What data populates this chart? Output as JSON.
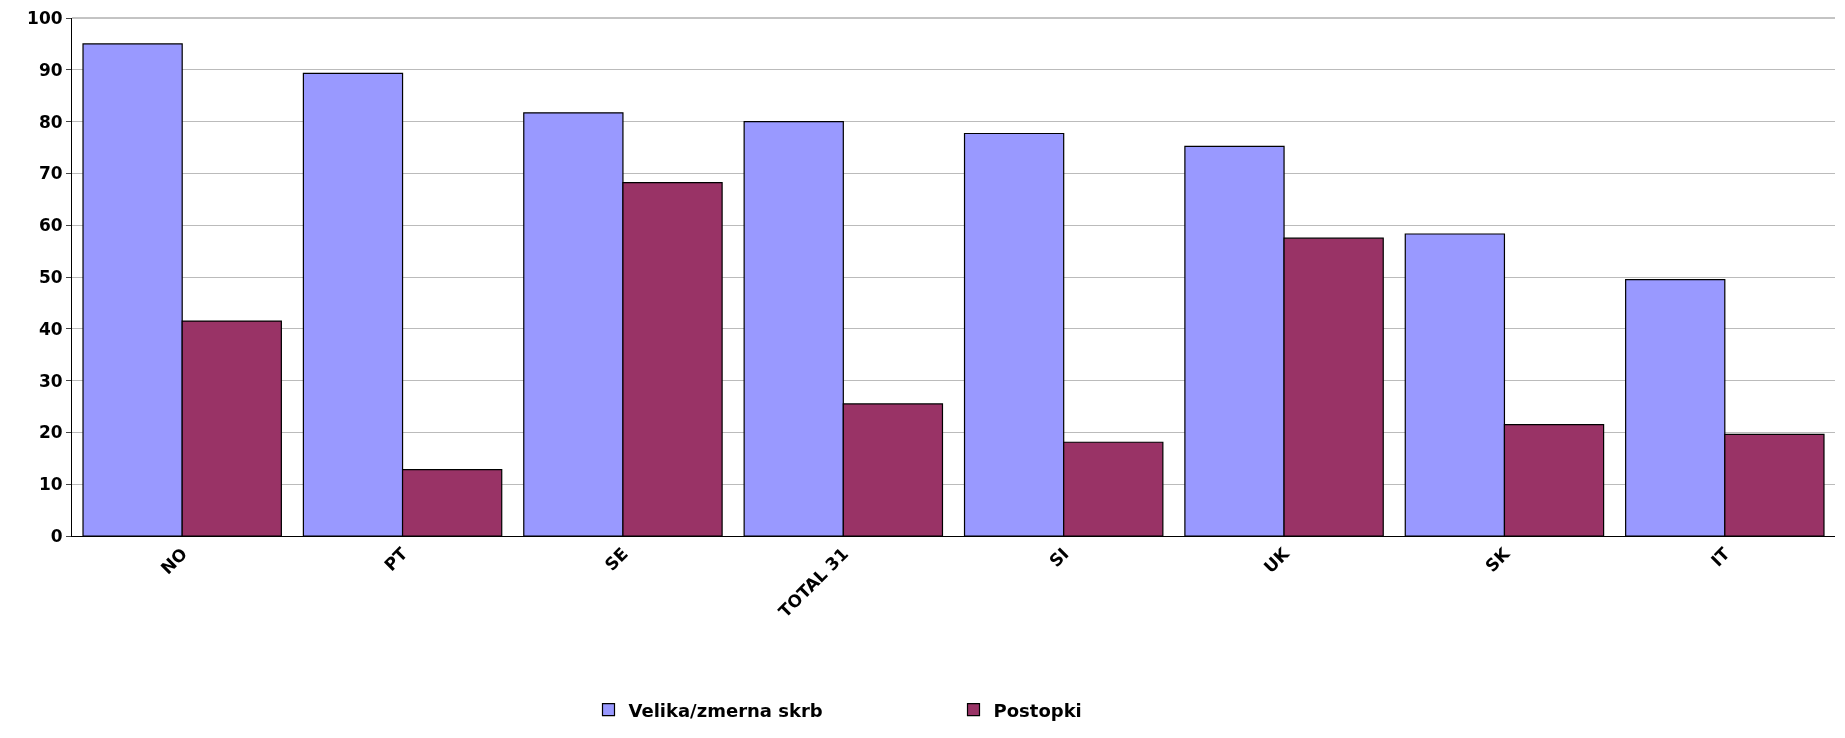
{
  "chart_data": {
    "type": "bar",
    "categories": [
      "NO",
      "PT",
      "SE",
      "TOTAL 31",
      "SI",
      "UK",
      "SK",
      "IT"
    ],
    "series": [
      {
        "name": "Velika/zmerna skrb",
        "color": "#9999ff",
        "values": [
          95,
          89.3,
          81.7,
          80,
          77.7,
          75.2,
          58.3,
          49.5
        ]
      },
      {
        "name": "Postopki",
        "color": "#993366",
        "values": [
          41.5,
          12.8,
          68.2,
          25.5,
          18.1,
          57.5,
          21.5,
          19.6
        ]
      }
    ],
    "ylim": [
      0,
      100
    ],
    "yticks": [
      0,
      10,
      20,
      30,
      40,
      50,
      60,
      70,
      80,
      90,
      100
    ],
    "grid": "y",
    "legend": "bottom"
  }
}
